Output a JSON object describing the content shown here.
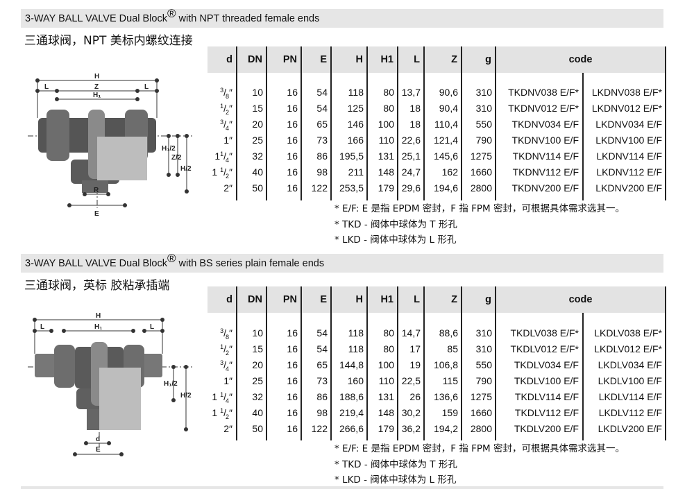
{
  "sections": [
    {
      "title_prefix": "3-WAY BALL VALVE Dual Block",
      "registered": "®",
      "title_suffix": " with NPT threaded female ends",
      "cn_title": "三通球阀，NPT 美标内螺纹连接",
      "diagram_labels": {
        "H": "H",
        "Z": "Z",
        "L": "L",
        "H1": "H₁",
        "H1_2": "H₁/2",
        "Z_2": "Z/2",
        "H_2": "H/2",
        "R": "R",
        "E": "E"
      },
      "headers": [
        "d",
        "DN",
        "PN",
        "E",
        "H",
        "H1",
        "L",
        "Z",
        "g",
        "code"
      ],
      "rows": [
        {
          "d": {
            "whole": "",
            "num": "3",
            "den": "8",
            "unit": "″"
          },
          "DN": "10",
          "PN": "16",
          "E": "54",
          "H": "118",
          "H1": "80",
          "L": "13,7",
          "Z": "90,6",
          "g": "310",
          "code_t": "TKDNV038 E/F*",
          "code_l": "LKDNV038 E/F*"
        },
        {
          "d": {
            "whole": "",
            "num": "1",
            "den": "2",
            "unit": "″"
          },
          "DN": "15",
          "PN": "16",
          "E": "54",
          "H": "125",
          "H1": "80",
          "L": "18",
          "Z": "90,4",
          "g": "310",
          "code_t": "TKDNV012 E/F*",
          "code_l": "LKDNV012 E/F*"
        },
        {
          "d": {
            "whole": "",
            "num": "3",
            "den": "4",
            "unit": "″"
          },
          "DN": "20",
          "PN": "16",
          "E": "65",
          "H": "146",
          "H1": "100",
          "L": "18",
          "Z": "110,4",
          "g": "550",
          "code_t": "TKDNV034 E/F",
          "code_l": "LKDNV034 E/F"
        },
        {
          "d": {
            "whole": "1",
            "num": "",
            "den": "",
            "unit": "″"
          },
          "DN": "25",
          "PN": "16",
          "E": "73",
          "H": "166",
          "H1": "110",
          "L": "22,6",
          "Z": "121,4",
          "g": "790",
          "code_t": "TKDNV100 E/F",
          "code_l": "LKDNV100 E/F"
        },
        {
          "d": {
            "whole": "1",
            "num": "1",
            "den": "4",
            "unit": "″"
          },
          "DN": "32",
          "PN": "16",
          "E": "86",
          "H": "195,5",
          "H1": "131",
          "L": "25,1",
          "Z": "145,6",
          "g": "1275",
          "code_t": "TKDNV114 E/F",
          "code_l": "LKDNV114 E/F"
        },
        {
          "d": {
            "whole": "1 ",
            "num": "1",
            "den": "2",
            "unit": "″"
          },
          "DN": "40",
          "PN": "16",
          "E": "98",
          "H": "211",
          "H1": "148",
          "L": "24,7",
          "Z": "162",
          "g": "1660",
          "code_t": "TKDNV112 E/F",
          "code_l": "LKDNV112 E/F"
        },
        {
          "d": {
            "whole": "2",
            "num": "",
            "den": "",
            "unit": "″"
          },
          "DN": "50",
          "PN": "16",
          "E": "122",
          "H": "253,5",
          "H1": "179",
          "L": "29,6",
          "Z": "194,6",
          "g": "2800",
          "code_t": "TKDNV200 E/F",
          "code_l": "LKDNV200 E/F"
        }
      ],
      "notes": [
        "* E/F: E 是指 EPDM 密封，F 指 FPM 密封，可根据具体需求选其一。",
        "* TKD - 阀体中球体为 T 形孔",
        "* LKD - 阀体中球体为 L 形孔"
      ]
    },
    {
      "title_prefix": "3-WAY BALL VALVE Dual Block",
      "registered": "®",
      "title_suffix": " with BS series plain female ends",
      "cn_title": "三通球阀，英标 胶粘承插端",
      "diagram_labels": {
        "H": "H",
        "L": "L",
        "H1": "H₁",
        "H1_2": "H₁/2",
        "H_2": "H/2",
        "d": "d",
        "E": "E"
      },
      "headers": [
        "d",
        "DN",
        "PN",
        "E",
        "H",
        "H1",
        "L",
        "Z",
        "g",
        "code"
      ],
      "rows": [
        {
          "d": {
            "whole": "",
            "num": "3",
            "den": "8",
            "unit": "″"
          },
          "DN": "10",
          "PN": "16",
          "E": "54",
          "H": "118",
          "H1": "80",
          "L": "14,7",
          "Z": "88,6",
          "g": "310",
          "code_t": "TKDLV038 E/F*",
          "code_l": "LKDLV038 E/F*"
        },
        {
          "d": {
            "whole": "",
            "num": "1",
            "den": "2",
            "unit": "″"
          },
          "DN": "15",
          "PN": "16",
          "E": "54",
          "H": "118",
          "H1": "80",
          "L": "17",
          "Z": "85",
          "g": "310",
          "code_t": "TKDLV012 E/F*",
          "code_l": "LKDLV012 E/F*"
        },
        {
          "d": {
            "whole": "",
            "num": "3",
            "den": "4",
            "unit": "″"
          },
          "DN": "20",
          "PN": "16",
          "E": "65",
          "H": "144,8",
          "H1": "100",
          "L": "19",
          "Z": "106,8",
          "g": "550",
          "code_t": "TKDLV034 E/F",
          "code_l": "LKDLV034 E/F"
        },
        {
          "d": {
            "whole": "1",
            "num": "",
            "den": "",
            "unit": "″"
          },
          "DN": "25",
          "PN": "16",
          "E": "73",
          "H": "160",
          "H1": "110",
          "L": "22,5",
          "Z": "115",
          "g": "790",
          "code_t": "TKDLV100 E/F",
          "code_l": "LKDLV100 E/F"
        },
        {
          "d": {
            "whole": "1 ",
            "num": "1",
            "den": "4",
            "unit": "″"
          },
          "DN": "32",
          "PN": "16",
          "E": "86",
          "H": "188,6",
          "H1": "131",
          "L": "26",
          "Z": "136,6",
          "g": "1275",
          "code_t": "TKDLV114 E/F",
          "code_l": "LKDLV114 E/F"
        },
        {
          "d": {
            "whole": "1 ",
            "num": "1",
            "den": "2",
            "unit": "″"
          },
          "DN": "40",
          "PN": "16",
          "E": "98",
          "H": "219,4",
          "H1": "148",
          "L": "30,2",
          "Z": "159",
          "g": "1660",
          "code_t": "TKDLV112 E/F",
          "code_l": "LKDLV112 E/F"
        },
        {
          "d": {
            "whole": "2",
            "num": "",
            "den": "",
            "unit": "″"
          },
          "DN": "50",
          "PN": "16",
          "E": "122",
          "H": "266,6",
          "H1": "179",
          "L": "36,2",
          "Z": "194,2",
          "g": "2800",
          "code_t": "TKDLV200 E/F",
          "code_l": "LKDLV200 E/F"
        }
      ],
      "notes": [
        "* E/F: E 是指 EPDM 密封，F 指 FPM 密封，可根据具体需求选其一。",
        "* TKD - 阀体中球体为 T 形孔",
        "* LKD - 阀体中球体为 L 形孔"
      ]
    }
  ]
}
